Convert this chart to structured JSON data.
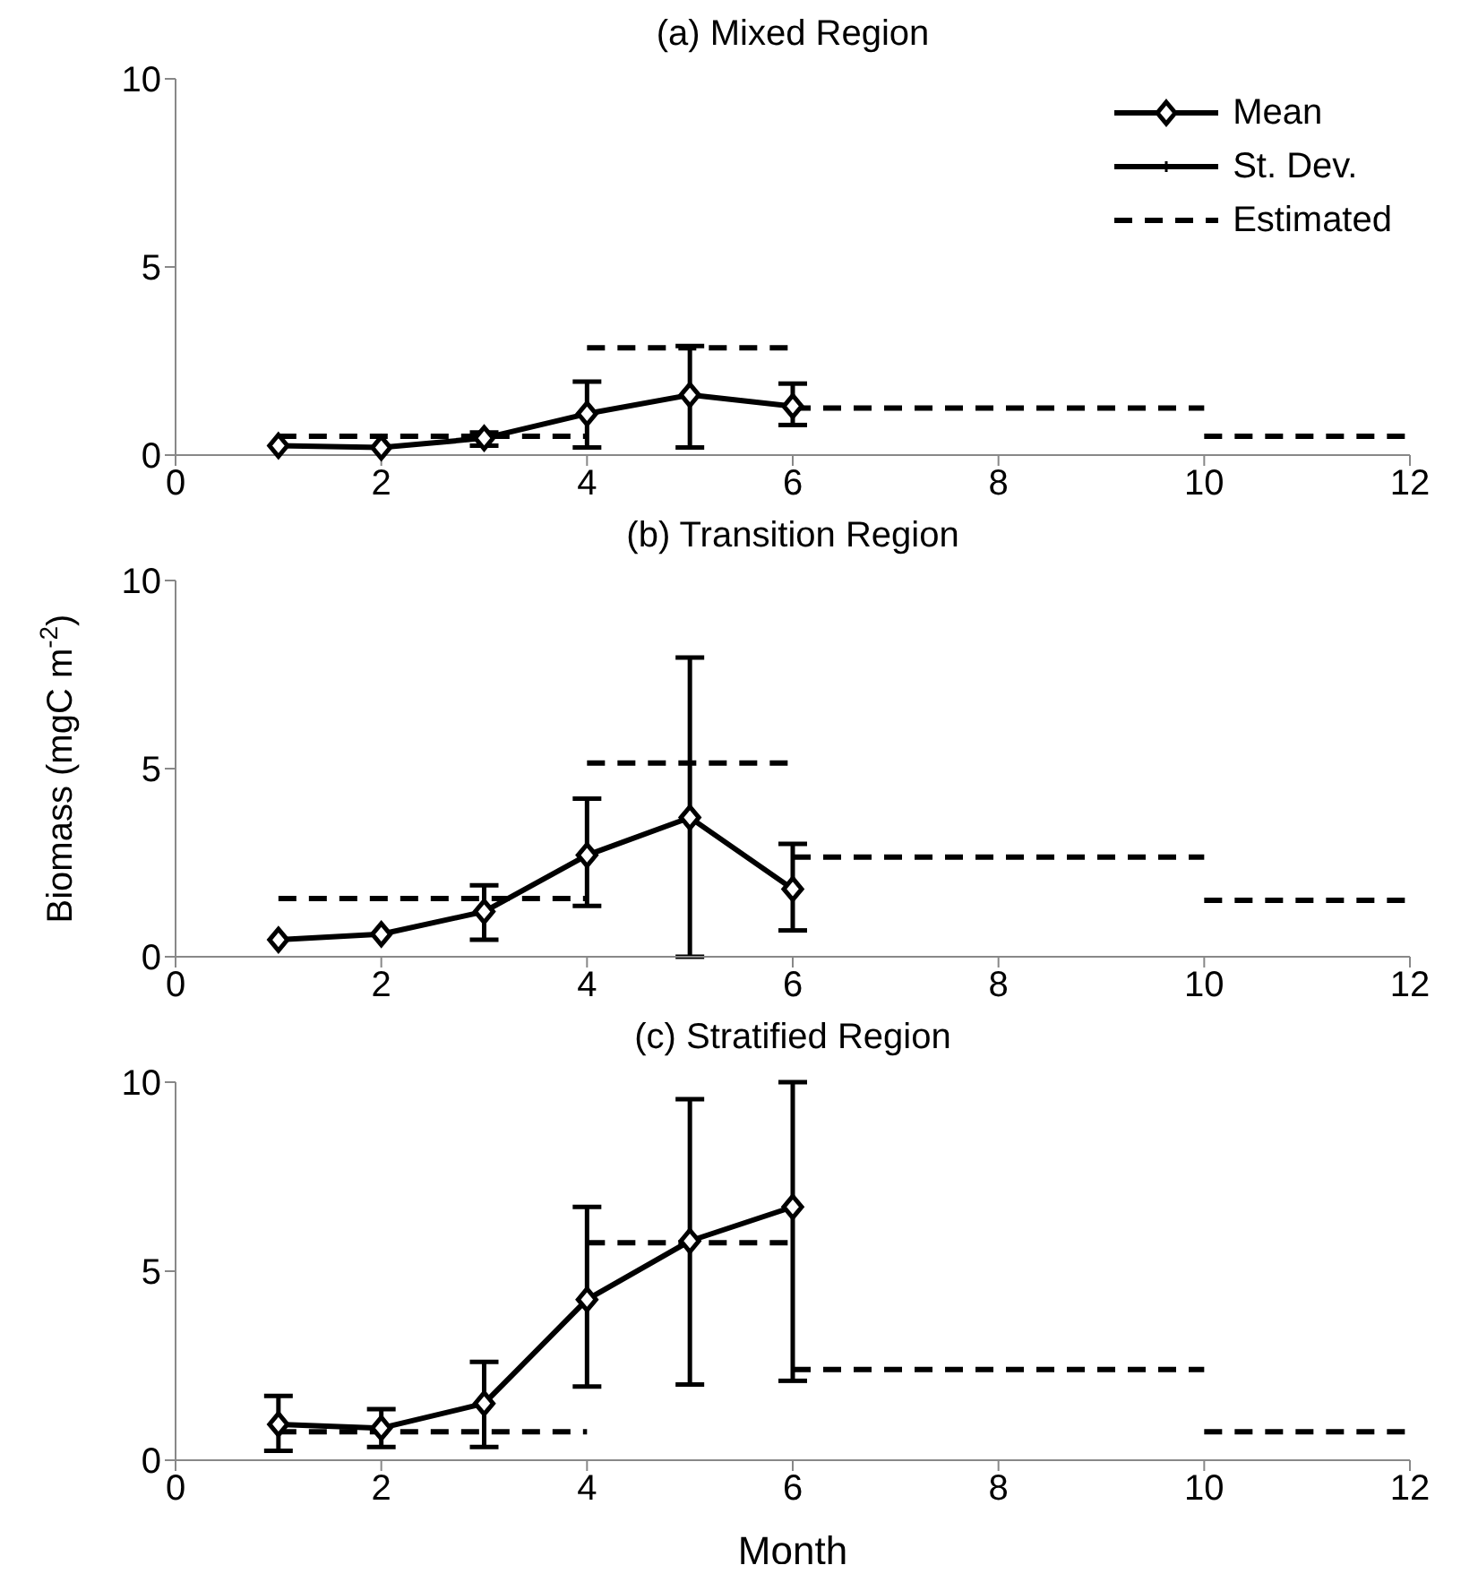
{
  "chart_data": [
    {
      "type": "line",
      "title": "(a) Mixed Region",
      "xlim": [
        0,
        12
      ],
      "xticks": [
        0,
        2,
        4,
        6,
        8,
        10,
        12
      ],
      "ylim": [
        0,
        10
      ],
      "yticks": [
        0,
        5,
        10
      ],
      "grid": false,
      "legend": "top right",
      "annotations": [
        "St. Dev."
      ],
      "series": [
        {
          "name": "Mean",
          "color": "#000000",
          "marker": "diamond",
          "line_style": "solid",
          "x": [
            1,
            2,
            3,
            4,
            5,
            6
          ],
          "values": [
            0.25,
            0.2,
            0.45,
            1.1,
            1.6,
            1.3
          ],
          "errors": [
            null,
            null,
            [
              0.25,
              0.6
            ],
            [
              0.2,
              1.95
            ],
            [
              0.2,
              2.9
            ],
            [
              0.8,
              1.9
            ]
          ]
        },
        {
          "name": "Estimated",
          "color": "#000000",
          "marker": "none",
          "line_style": "dashed",
          "x": [
            1,
            4
          ],
          "values": [
            0.5,
            0.5
          ]
        },
        {
          "color": "#000000",
          "marker": "none",
          "line_style": "dashed",
          "x": [
            4,
            6
          ],
          "values": [
            2.85,
            2.85
          ]
        },
        {
          "color": "#000000",
          "marker": "none",
          "line_style": "dashed",
          "x": [
            6,
            10
          ],
          "values": [
            1.25,
            1.25
          ]
        },
        {
          "color": "#000000",
          "marker": "none",
          "line_style": "dashed",
          "x": [
            10,
            12
          ],
          "values": [
            0.5,
            0.5
          ]
        }
      ]
    },
    {
      "type": "line",
      "title": "(b) Transition Region",
      "ylabel": "Biomass (mgC m$^{-2}$)",
      "xlim": [
        0,
        12
      ],
      "xticks": [
        0,
        2,
        4,
        6,
        8,
        10,
        12
      ],
      "ylim": [
        0,
        10
      ],
      "yticks": [
        0,
        5,
        10
      ],
      "grid": false,
      "legend": false,
      "series": [
        {
          "color": "#000000",
          "marker": "diamond",
          "line_style": "solid",
          "x": [
            1,
            2,
            3,
            4,
            5,
            6
          ],
          "values": [
            0.45,
            0.6,
            1.2,
            2.7,
            3.7,
            1.8
          ],
          "errors": [
            null,
            null,
            [
              0.45,
              1.9
            ],
            [
              1.35,
              4.2
            ],
            [
              0,
              7.95
            ],
            [
              0.7,
              3.0
            ]
          ]
        },
        {
          "color": "#000000",
          "marker": "none",
          "line_style": "dashed",
          "x": [
            1,
            4
          ],
          "values": [
            1.55,
            1.55
          ]
        },
        {
          "color": "#000000",
          "marker": "none",
          "line_style": "dashed",
          "x": [
            4,
            6
          ],
          "values": [
            5.15,
            5.15
          ]
        },
        {
          "color": "#000000",
          "marker": "none",
          "line_style": "dashed",
          "x": [
            6,
            10
          ],
          "values": [
            2.65,
            2.65
          ]
        },
        {
          "color": "#000000",
          "marker": "none",
          "line_style": "dashed",
          "x": [
            10,
            12
          ],
          "values": [
            1.5,
            1.5
          ]
        }
      ]
    },
    {
      "type": "line",
      "title": "(c) Stratified Region",
      "xlabel": "Month",
      "xlim": [
        0,
        12
      ],
      "xticks": [
        0,
        2,
        4,
        6,
        8,
        10,
        12
      ],
      "ylim": [
        0,
        10
      ],
      "yticks": [
        0,
        5,
        10
      ],
      "grid": false,
      "legend": false,
      "series": [
        {
          "color": "#000000",
          "marker": "diamond",
          "line_style": "solid",
          "x": [
            1,
            2,
            3,
            4,
            5,
            6
          ],
          "values": [
            0.95,
            0.85,
            1.5,
            4.25,
            5.8,
            6.7
          ],
          "errors": [
            [
              0.25,
              1.7
            ],
            [
              0.35,
              1.35
            ],
            [
              0.35,
              2.6
            ],
            [
              1.95,
              6.7
            ],
            [
              2.0,
              9.55
            ],
            [
              2.1,
              10
            ]
          ]
        },
        {
          "color": "#000000",
          "marker": "none",
          "line_style": "dashed",
          "x": [
            1,
            4
          ],
          "values": [
            0.75,
            0.75
          ]
        },
        {
          "color": "#000000",
          "marker": "none",
          "line_style": "dashed",
          "x": [
            4,
            6
          ],
          "values": [
            5.75,
            5.75
          ]
        },
        {
          "color": "#000000",
          "marker": "none",
          "line_style": "dashed",
          "x": [
            6,
            10
          ],
          "values": [
            2.4,
            2.4
          ]
        },
        {
          "color": "#000000",
          "marker": "none",
          "line_style": "dashed",
          "x": [
            10,
            12
          ],
          "values": [
            0.75,
            0.75
          ]
        }
      ]
    }
  ]
}
